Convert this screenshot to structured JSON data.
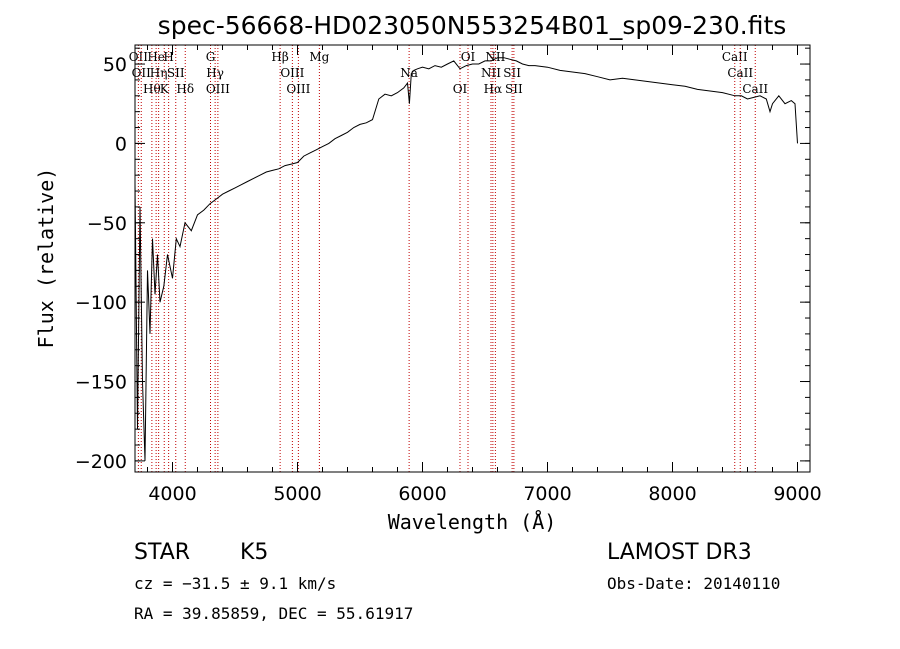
{
  "chart_data": {
    "type": "line",
    "title": "spec-56668-HD023050N553254B01_sp09-230.fits",
    "xlabel": "Wavelength (Å)",
    "ylabel": "Flux (relative)",
    "xlim": [
      3700,
      9100
    ],
    "ylim": [
      -207,
      62
    ],
    "xticks": [
      4000,
      5000,
      6000,
      7000,
      8000,
      9000
    ],
    "yticks": [
      -200,
      -150,
      -100,
      -50,
      0,
      50
    ],
    "series": [
      {
        "name": "flux",
        "x": [
          3700,
          3720,
          3740,
          3760,
          3780,
          3800,
          3820,
          3840,
          3860,
          3880,
          3900,
          3930,
          3960,
          4000,
          4030,
          4060,
          4100,
          4150,
          4200,
          4250,
          4300,
          4350,
          4400,
          4450,
          4500,
          4550,
          4600,
          4650,
          4700,
          4750,
          4800,
          4850,
          4900,
          4950,
          5000,
          5050,
          5100,
          5150,
          5200,
          5250,
          5300,
          5350,
          5400,
          5450,
          5500,
          5550,
          5600,
          5650,
          5700,
          5750,
          5800,
          5850,
          5880,
          5895,
          5910,
          5930,
          5960,
          6000,
          6050,
          6100,
          6150,
          6200,
          6250,
          6300,
          6350,
          6400,
          6450,
          6500,
          6550,
          6600,
          6650,
          6700,
          6750,
          6800,
          6850,
          6900,
          7000,
          7100,
          7200,
          7300,
          7400,
          7500,
          7600,
          7700,
          7800,
          7900,
          8000,
          8100,
          8200,
          8300,
          8400,
          8500,
          8550,
          8600,
          8650,
          8700,
          8750,
          8780,
          8800,
          8850,
          8900,
          8950,
          8980,
          9000
        ],
        "y": [
          -25,
          -180,
          -40,
          -150,
          -200,
          -80,
          -120,
          -60,
          -95,
          -70,
          -100,
          -90,
          -70,
          -85,
          -60,
          -65,
          -50,
          -55,
          -45,
          -42,
          -38,
          -35,
          -32,
          -30,
          -28,
          -26,
          -24,
          -22,
          -20,
          -18,
          -17,
          -16,
          -14,
          -13,
          -12,
          -8,
          -6,
          -4,
          -2,
          0,
          3,
          5,
          7,
          10,
          12,
          13,
          15,
          28,
          31,
          30,
          32,
          35,
          38,
          25,
          44,
          46,
          47,
          48,
          47,
          49,
          48,
          50,
          52,
          47,
          49,
          50,
          50,
          52,
          52,
          54,
          54,
          53,
          52,
          50,
          49,
          49,
          48,
          46,
          45,
          44,
          42,
          40,
          41,
          40,
          39,
          38,
          37,
          36,
          34,
          33,
          32,
          30,
          30,
          28,
          29,
          30,
          28,
          20,
          25,
          30,
          25,
          27,
          25,
          0
        ]
      }
    ],
    "emission_lines": [
      {
        "wavelength": 3727,
        "label": "OII"
      },
      {
        "wavelength": 3750,
        "label": "OII"
      },
      {
        "wavelength": 3835,
        "label": "Hθ"
      },
      {
        "wavelength": 3869,
        "label": "He"
      },
      {
        "wavelength": 3889,
        "label": "Hη"
      },
      {
        "wavelength": 3934,
        "label": "K"
      },
      {
        "wavelength": 3969,
        "label": "H"
      },
      {
        "wavelength": 4026,
        "label": "SII"
      },
      {
        "wavelength": 4102,
        "label": "Hδ"
      },
      {
        "wavelength": 4304,
        "label": "G"
      },
      {
        "wavelength": 4341,
        "label": "Hγ"
      },
      {
        "wavelength": 4363,
        "label": "OIII"
      },
      {
        "wavelength": 4861,
        "label": "Hβ"
      },
      {
        "wavelength": 4959,
        "label": "OIII"
      },
      {
        "wavelength": 5007,
        "label": "OIII"
      },
      {
        "wavelength": 5175,
        "label": "Mg"
      },
      {
        "wavelength": 5893,
        "label": "Na"
      },
      {
        "wavelength": 6300,
        "label": "OI"
      },
      {
        "wavelength": 6364,
        "label": "OI"
      },
      {
        "wavelength": 6548,
        "label": "NII"
      },
      {
        "wavelength": 6563,
        "label": "Hα"
      },
      {
        "wavelength": 6583,
        "label": "NII"
      },
      {
        "wavelength": 6717,
        "label": "SII"
      },
      {
        "wavelength": 6731,
        "label": "SII"
      },
      {
        "wavelength": 8498,
        "label": "CaII"
      },
      {
        "wavelength": 8542,
        "label": "CaII"
      },
      {
        "wavelength": 8662,
        "label": "CaII"
      }
    ]
  },
  "info": {
    "class": "STAR",
    "subclass": "K5",
    "survey": "LAMOST DR3",
    "cz": "cz = −31.5 ± 9.1 km/s",
    "obs_date": "Obs-Date: 20140110",
    "radec": "RA =  39.85859, DEC =  55.61917"
  }
}
